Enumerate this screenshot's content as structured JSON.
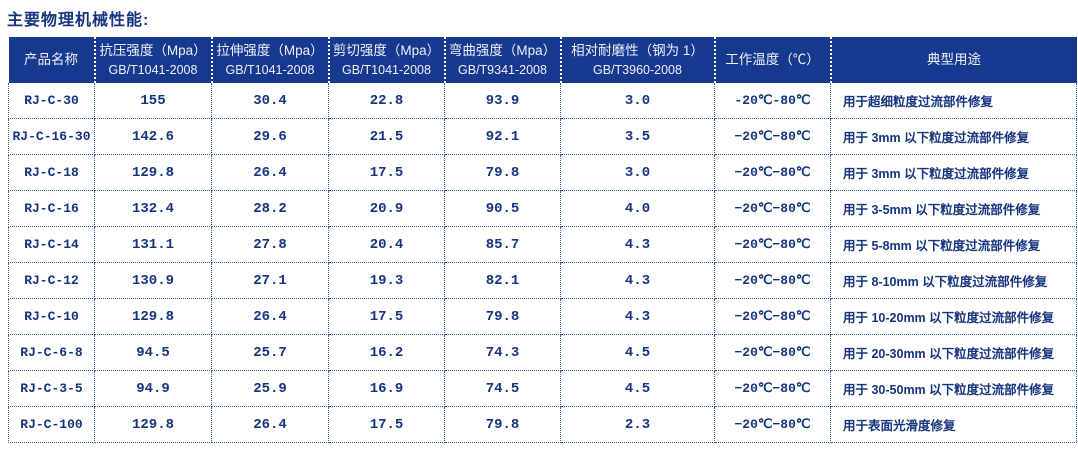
{
  "page": {
    "title": "主要物理机械性能:"
  },
  "colors": {
    "header_bg": "#17398f",
    "header_text": "#eef0fa",
    "data_text": "#15337f",
    "border_blue": "#3b5aa6"
  },
  "table": {
    "columns": [
      {
        "label": "产品名称",
        "sub": ""
      },
      {
        "label": "抗压强度（Mpa）",
        "sub": "GB/T1041-2008"
      },
      {
        "label": "拉伸强度（Mpa）",
        "sub": "GB/T1041-2008"
      },
      {
        "label": "剪切强度（Mpa）",
        "sub": "GB/T1041-2008"
      },
      {
        "label": "弯曲强度（Mpa）",
        "sub": "GB/T9341-2008"
      },
      {
        "label": "相对耐磨性（钢为 1）",
        "sub": "GB/T3960-2008"
      },
      {
        "label": "工作温度（℃）",
        "sub": ""
      },
      {
        "label": "典型用途",
        "sub": ""
      }
    ],
    "rows": [
      {
        "product": "RJ-C-30",
        "compressive": "155",
        "tensile": "30.4",
        "shear": "22.8",
        "flexural": "93.9",
        "wear": "3.0",
        "temp": "-20℃-80℃",
        "usage": "用于超细粒度过流部件修复"
      },
      {
        "product": "RJ-C-16-30",
        "compressive": "142.6",
        "tensile": "29.6",
        "shear": "21.5",
        "flexural": "92.1",
        "wear": "3.5",
        "temp": "−20℃−80℃",
        "usage": "用于 3mm 以下粒度过流部件修复"
      },
      {
        "product": "RJ-C-18",
        "compressive": "129.8",
        "tensile": "26.4",
        "shear": "17.5",
        "flexural": "79.8",
        "wear": "3.0",
        "temp": "−20℃−80℃",
        "usage": "用于 3mm 以下粒度过流部件修复"
      },
      {
        "product": "RJ-C-16",
        "compressive": "132.4",
        "tensile": "28.2",
        "shear": "20.9",
        "flexural": "90.5",
        "wear": "4.0",
        "temp": "−20℃−80℃",
        "usage": "用于 3-5mm 以下粒度过流部件修复"
      },
      {
        "product": "RJ-C-14",
        "compressive": "131.1",
        "tensile": "27.8",
        "shear": "20.4",
        "flexural": "85.7",
        "wear": "4.3",
        "temp": "−20℃−80℃",
        "usage": "用于 5-8mm 以下粒度过流部件修复"
      },
      {
        "product": "RJ-C-12",
        "compressive": "130.9",
        "tensile": "27.1",
        "shear": "19.3",
        "flexural": "82.1",
        "wear": "4.3",
        "temp": "−20℃−80℃",
        "usage": "用于 8-10mm 以下粒度过流部件修复"
      },
      {
        "product": "RJ-C-10",
        "compressive": "129.8",
        "tensile": "26.4",
        "shear": "17.5",
        "flexural": "79.8",
        "wear": "4.3",
        "temp": "−20℃−80℃",
        "usage": "用于 10-20mm 以下粒度过流部件修复"
      },
      {
        "product": "RJ-C-6-8",
        "compressive": "94.5",
        "tensile": "25.7",
        "shear": "16.2",
        "flexural": "74.3",
        "wear": "4.5",
        "temp": "−20℃−80℃",
        "usage": "用于 20-30mm 以下粒度过流部件修复"
      },
      {
        "product": "RJ-C-3-5",
        "compressive": "94.9",
        "tensile": "25.9",
        "shear": "16.9",
        "flexural": "74.5",
        "wear": "4.5",
        "temp": "−20℃−80℃",
        "usage": "用于 30-50mm 以下粒度过流部件修复"
      },
      {
        "product": "RJ-C-100",
        "compressive": "129.8",
        "tensile": "26.4",
        "shear": "17.5",
        "flexural": "79.8",
        "wear": "2.3",
        "temp": "−20℃−80℃",
        "usage": "用于表面光滑度修复"
      }
    ]
  }
}
